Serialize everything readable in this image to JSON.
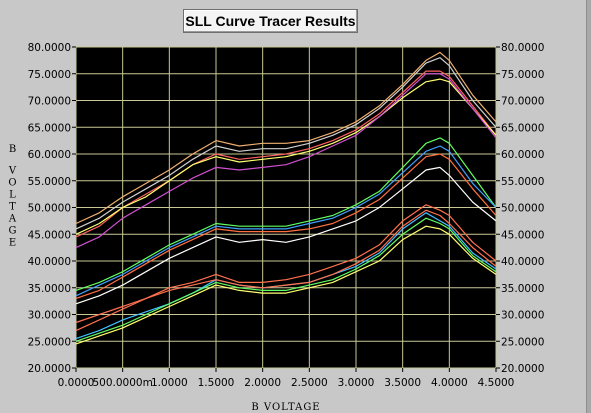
{
  "window": {
    "title": "SLL Curve Tracer Results"
  },
  "chart_data": {
    "type": "line",
    "title": "SLL Curve Tracer Results",
    "xlabel": "B VOLTAGE",
    "ylabel": "B VOLTAGE",
    "xlim": [
      0,
      4.5
    ],
    "ylim": [
      20,
      80
    ],
    "grid": true,
    "legend": "none",
    "background": "#000000",
    "grid_color": "#c8c896",
    "x_ticks": [
      "0.0000",
      "500.0000m",
      "1.0000",
      "1.5000",
      "2.0000",
      "2.5000",
      "3.0000",
      "3.5000",
      "4.0000",
      "4.5000"
    ],
    "y_ticks_left": [
      "80.0000",
      "75.0000",
      "70.0000",
      "65.0000",
      "60.0000",
      "55.0000",
      "50.0000",
      "45.0000",
      "40.0000",
      "35.0000",
      "30.0000",
      "25.0000",
      "20.0000"
    ],
    "y_ticks_right": [
      "80.0000",
      "75.0000",
      "70.0000",
      "65.0000",
      "60.0000",
      "55.0000",
      "50.0000",
      "45.0000",
      "40.0000",
      "35.0000",
      "30.0000",
      "25.0000",
      "20.0000"
    ],
    "x": [
      0,
      0.25,
      0.5,
      0.75,
      1.0,
      1.25,
      1.5,
      1.75,
      2.0,
      2.25,
      2.5,
      2.75,
      3.0,
      3.25,
      3.5,
      3.75,
      3.9,
      4.0,
      4.25,
      4.5
    ],
    "series": [
      {
        "color": "#f0b070",
        "values": [
          47.0,
          49.0,
          52.0,
          54.5,
          57.0,
          60.0,
          62.5,
          61.5,
          62.0,
          62.0,
          62.5,
          64.0,
          66.0,
          69.0,
          73.0,
          77.5,
          79.0,
          77.5,
          71.0,
          66.0
        ]
      },
      {
        "color": "#d0d0d0",
        "values": [
          46.0,
          48.0,
          51.0,
          53.5,
          56.0,
          59.0,
          61.5,
          60.5,
          61.0,
          61.0,
          62.0,
          63.5,
          65.5,
          68.5,
          72.5,
          77.0,
          78.0,
          76.5,
          70.0,
          65.0
        ]
      },
      {
        "color": "#ff6060",
        "values": [
          44.5,
          46.5,
          50.0,
          52.5,
          55.0,
          58.0,
          60.0,
          59.0,
          59.5,
          60.0,
          61.0,
          62.5,
          64.5,
          67.5,
          71.5,
          75.5,
          75.5,
          74.5,
          69.0,
          63.5
        ]
      },
      {
        "color": "#ffff70",
        "values": [
          45.0,
          47.0,
          50.0,
          52.0,
          55.0,
          58.0,
          59.5,
          58.5,
          59.0,
          59.5,
          60.5,
          62.0,
          64.0,
          67.0,
          70.5,
          73.5,
          74.0,
          73.5,
          68.5,
          63.5
        ]
      },
      {
        "color": "#d050d0",
        "values": [
          42.5,
          44.5,
          48.0,
          50.5,
          53.0,
          55.5,
          57.5,
          57.0,
          57.5,
          58.0,
          59.5,
          61.5,
          63.5,
          67.0,
          71.0,
          75.0,
          75.0,
          74.0,
          68.5,
          63.0
        ]
      },
      {
        "color": "#60ff60",
        "values": [
          34.5,
          36.0,
          38.0,
          40.5,
          43.0,
          45.0,
          47.0,
          46.5,
          46.5,
          46.5,
          47.5,
          48.5,
          50.5,
          53.0,
          57.5,
          62.0,
          63.0,
          62.0,
          56.0,
          50.0
        ]
      },
      {
        "color": "#40a0ff",
        "values": [
          33.5,
          35.5,
          37.5,
          40.0,
          42.5,
          44.5,
          46.5,
          46.0,
          46.0,
          46.0,
          47.0,
          48.0,
          50.0,
          52.5,
          56.5,
          60.5,
          61.5,
          60.5,
          54.5,
          50.0
        ]
      },
      {
        "color": "#ff7040",
        "values": [
          33.0,
          34.5,
          37.0,
          39.5,
          42.0,
          44.0,
          46.0,
          45.5,
          45.5,
          45.5,
          46.0,
          47.0,
          49.0,
          51.5,
          55.5,
          59.5,
          60.0,
          59.0,
          53.5,
          48.5
        ]
      },
      {
        "color": "#ffffff",
        "values": [
          32.0,
          33.5,
          35.5,
          38.0,
          40.5,
          42.5,
          44.5,
          43.5,
          44.0,
          43.5,
          44.5,
          46.0,
          47.5,
          50.0,
          53.5,
          57.0,
          57.5,
          56.0,
          51.0,
          47.5
        ]
      },
      {
        "color": "#ff7050",
        "values": [
          27.0,
          29.0,
          31.0,
          33.0,
          35.0,
          36.0,
          37.5,
          36.0,
          36.0,
          36.5,
          37.5,
          39.0,
          40.5,
          43.0,
          47.5,
          50.5,
          49.5,
          48.5,
          43.5,
          40.0
        ]
      },
      {
        "color": "#40c0ff",
        "values": [
          25.5,
          27.0,
          29.0,
          30.5,
          32.0,
          34.0,
          36.5,
          35.5,
          35.0,
          35.5,
          36.0,
          37.5,
          39.0,
          41.5,
          46.0,
          49.0,
          47.5,
          46.5,
          41.5,
          38.5
        ]
      },
      {
        "color": "#60ff60",
        "values": [
          25.0,
          26.5,
          28.0,
          30.0,
          32.0,
          34.0,
          36.0,
          35.0,
          34.5,
          34.5,
          35.5,
          36.5,
          38.5,
          41.0,
          45.0,
          48.0,
          47.0,
          46.0,
          41.0,
          38.0
        ]
      },
      {
        "color": "#ffff70",
        "values": [
          24.5,
          26.0,
          27.5,
          29.5,
          31.5,
          33.5,
          35.5,
          34.5,
          34.0,
          34.0,
          35.0,
          36.0,
          38.0,
          40.0,
          44.0,
          46.5,
          46.0,
          45.0,
          40.5,
          37.5
        ]
      },
      {
        "color": "#ff7050",
        "values": [
          28.5,
          30.0,
          31.5,
          33.0,
          34.5,
          35.5,
          36.5,
          35.5,
          35.0,
          35.5,
          36.0,
          37.5,
          39.5,
          42.0,
          46.5,
          49.5,
          48.5,
          47.0,
          42.5,
          39.0
        ]
      }
    ]
  }
}
